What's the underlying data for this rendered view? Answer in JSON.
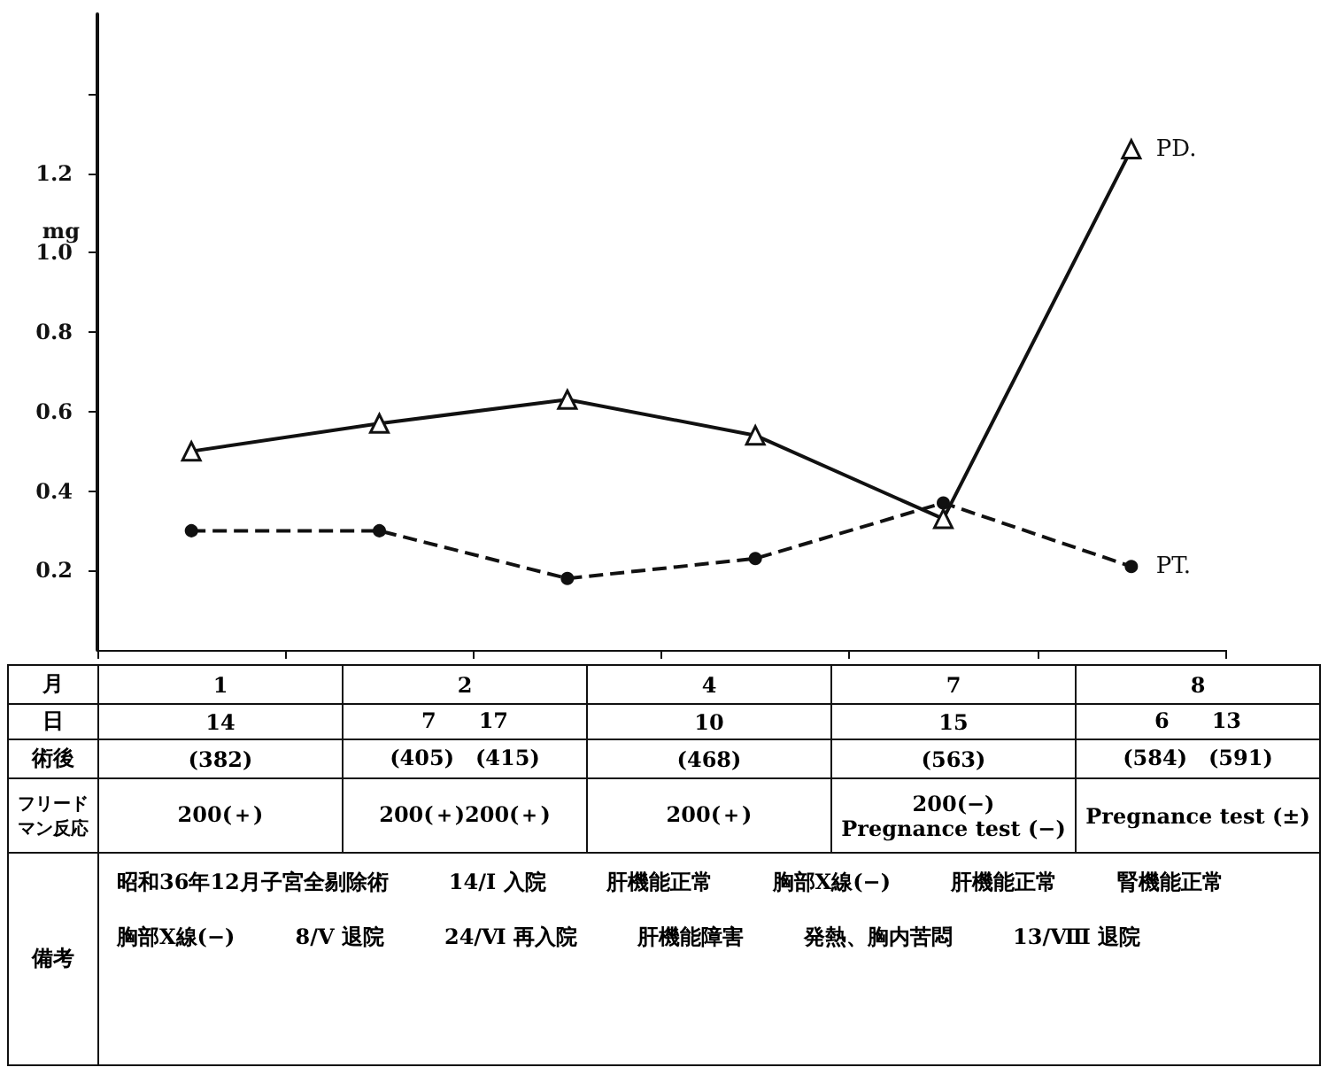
{
  "chart_data": {
    "type": "line",
    "ylabel": "mg",
    "categories": [
      null,
      null,
      null,
      null,
      null,
      null
    ],
    "series": [
      {
        "name": "PD.",
        "color": "#111111",
        "marker": "triangle",
        "line_style": "solid",
        "values": [
          0.5,
          0.57,
          0.63,
          0.54,
          0.33,
          1.26
        ]
      },
      {
        "name": "PT.",
        "color": "#111111",
        "marker": "circle",
        "line_style": "dashed",
        "values": [
          0.3,
          0.3,
          0.18,
          0.23,
          0.37,
          0.21
        ]
      }
    ],
    "ylim": [
      0,
      1.6
    ],
    "yticks": [
      0.2,
      0.4,
      0.6,
      0.8,
      {
        "value": 1.0,
        "label": "1.0"
      },
      1.2,
      {
        "value": 1.4,
        "label": null
      }
    ],
    "grid": false,
    "legend": false,
    "annotations": [
      "月",
      "1",
      "2",
      "4",
      "7",
      "8",
      "日",
      "14",
      "7　　17",
      "10",
      "15",
      "6　　13",
      "術後",
      "(382)",
      "(405)　(415)",
      "(468)",
      "(563)",
      "(584)　(591)",
      "フリードマン反応",
      "200(＋)",
      "200(＋)200(＋)",
      "200(＋)",
      "200(−)\nPregnance test (−)",
      "Pregnance test (±)",
      "備考",
      "昭和36年12月子宮全剔除術",
      "14/Ⅰ 入院",
      "肝機能正常",
      "胸部X線(−)",
      "肝機能正常",
      "腎機能正常",
      "胸部X線(−)",
      "8/Ⅴ 退院",
      "24/Ⅵ 再入院",
      "肝機能障害",
      "発熱、胸内苦悶",
      "13/Ⅷ 退院"
    ]
  }
}
